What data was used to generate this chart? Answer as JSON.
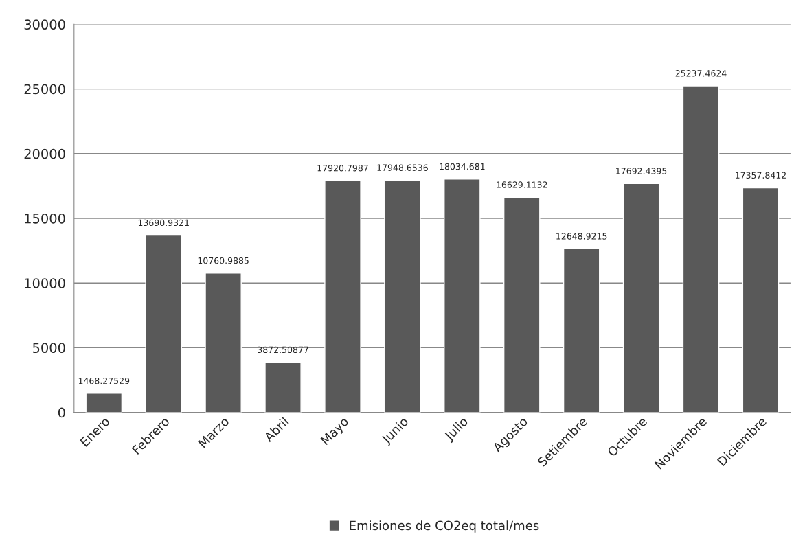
{
  "chart_data": {
    "type": "bar",
    "categories": [
      "Enero",
      "Febrero",
      "Marzo",
      "Abril",
      "Mayo",
      "Junio",
      "Julio",
      "Agosto",
      "Setiembre",
      "Octubre",
      "Noviembre",
      "Diciembre"
    ],
    "series": [
      {
        "name": "Emisiones de CO2eq total/mes",
        "color": "#595959",
        "values": [
          1468.27529,
          13690.9321,
          10760.9885,
          3872.50877,
          17920.7987,
          17948.6536,
          18034.681,
          16629.1132,
          12648.9215,
          17692.4395,
          25237.4624,
          17357.8412
        ]
      }
    ],
    "ylim": [
      0,
      30000
    ],
    "yticks": [
      0,
      5000,
      10000,
      15000,
      20000,
      25000,
      30000
    ],
    "grid": "y",
    "legend": "bottom",
    "data_labels": true
  }
}
